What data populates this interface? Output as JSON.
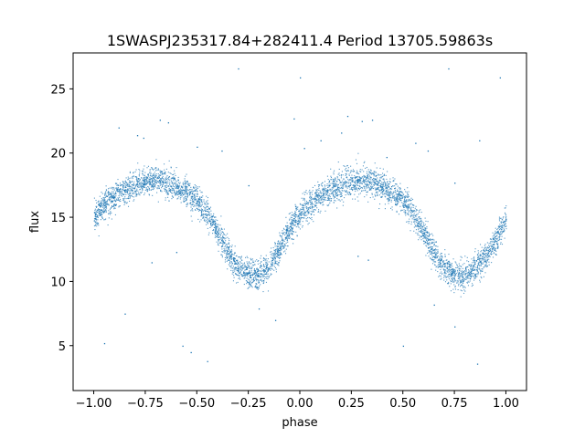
{
  "chart_data": {
    "type": "scatter",
    "title": "1SWASPJ235317.84+282411.4 Period 13705.59863s",
    "xlabel": "phase",
    "ylabel": "flux",
    "xlim": [
      -1.1,
      1.1
    ],
    "ylim": [
      1.5,
      27.8
    ],
    "grid": false,
    "x_ticks": [
      -1.0,
      -0.75,
      -0.5,
      -0.25,
      0.0,
      0.25,
      0.5,
      0.75,
      1.0
    ],
    "x_tick_labels": [
      "−1.00",
      "−0.75",
      "−0.50",
      "−0.25",
      "0.00",
      "0.25",
      "0.50",
      "0.75",
      "1.00"
    ],
    "y_ticks": [
      5,
      10,
      15,
      20,
      25
    ],
    "y_tick_labels": [
      "5",
      "10",
      "15",
      "20",
      "25"
    ],
    "point_color": "#1f77b4",
    "series": [
      {
        "x": [
          -1.0,
          -0.95,
          -0.9,
          -0.85,
          -0.8,
          -0.75,
          -0.7,
          -0.65,
          -0.6,
          -0.55,
          -0.5,
          -0.45,
          -0.4,
          -0.35,
          -0.3,
          -0.25,
          -0.2,
          -0.15,
          -0.1,
          -0.05,
          0.0,
          0.05,
          0.1,
          0.15,
          0.2,
          0.25,
          0.3,
          0.35,
          0.4,
          0.45,
          0.5,
          0.55,
          0.6,
          0.65,
          0.7,
          0.75,
          0.8,
          0.85,
          0.9,
          0.95,
          1.0
        ],
        "y": [
          15.0,
          16.1,
          16.6,
          17.1,
          17.5,
          17.8,
          18.0,
          17.8,
          17.4,
          16.9,
          16.3,
          15.3,
          13.8,
          12.2,
          11.0,
          10.6,
          10.5,
          11.0,
          12.6,
          14.2,
          15.3,
          16.1,
          16.6,
          17.1,
          17.5,
          17.8,
          18.0,
          17.8,
          17.4,
          16.9,
          16.3,
          15.3,
          13.8,
          12.2,
          11.0,
          10.6,
          10.5,
          11.0,
          12.0,
          13.3,
          14.8
        ]
      }
    ],
    "outlier_points": [
      {
        "x": -0.88,
        "y": 22.0
      },
      {
        "x": -0.79,
        "y": 21.4
      },
      {
        "x": -0.76,
        "y": 21.2
      },
      {
        "x": -0.68,
        "y": 22.6
      },
      {
        "x": -0.64,
        "y": 22.4
      },
      {
        "x": -0.5,
        "y": 20.5
      },
      {
        "x": -0.38,
        "y": 20.2
      },
      {
        "x": -0.45,
        "y": 3.8
      },
      {
        "x": -0.53,
        "y": 4.5
      },
      {
        "x": -0.57,
        "y": 5.0
      },
      {
        "x": -0.2,
        "y": 7.9
      },
      {
        "x": -0.12,
        "y": 7.0
      },
      {
        "x": -0.3,
        "y": 26.6
      },
      {
        "x": -0.0,
        "y": 25.9
      },
      {
        "x": -0.03,
        "y": 22.7
      },
      {
        "x": 0.02,
        "y": 20.4
      },
      {
        "x": 0.1,
        "y": 21.0
      },
      {
        "x": 0.2,
        "y": 21.6
      },
      {
        "x": 0.23,
        "y": 22.9
      },
      {
        "x": 0.3,
        "y": 22.5
      },
      {
        "x": 0.35,
        "y": 22.6
      },
      {
        "x": 0.42,
        "y": 19.7
      },
      {
        "x": 0.56,
        "y": 20.8
      },
      {
        "x": 0.62,
        "y": 20.2
      },
      {
        "x": 0.72,
        "y": 26.6
      },
      {
        "x": 0.97,
        "y": 25.9
      },
      {
        "x": 0.87,
        "y": 21.0
      },
      {
        "x": 0.75,
        "y": 6.5
      },
      {
        "x": 0.86,
        "y": 3.6
      },
      {
        "x": 0.5,
        "y": 5.0
      },
      {
        "x": -0.95,
        "y": 5.2
      },
      {
        "x": -0.85,
        "y": 7.5
      },
      {
        "x": 0.65,
        "y": 8.2
      },
      {
        "x": -0.72,
        "y": 11.5
      },
      {
        "x": -0.6,
        "y": 12.3
      },
      {
        "x": 0.28,
        "y": 12.0
      },
      {
        "x": 0.33,
        "y": 11.7
      },
      {
        "x": -0.25,
        "y": 17.5
      },
      {
        "x": 0.75,
        "y": 17.7
      }
    ]
  }
}
